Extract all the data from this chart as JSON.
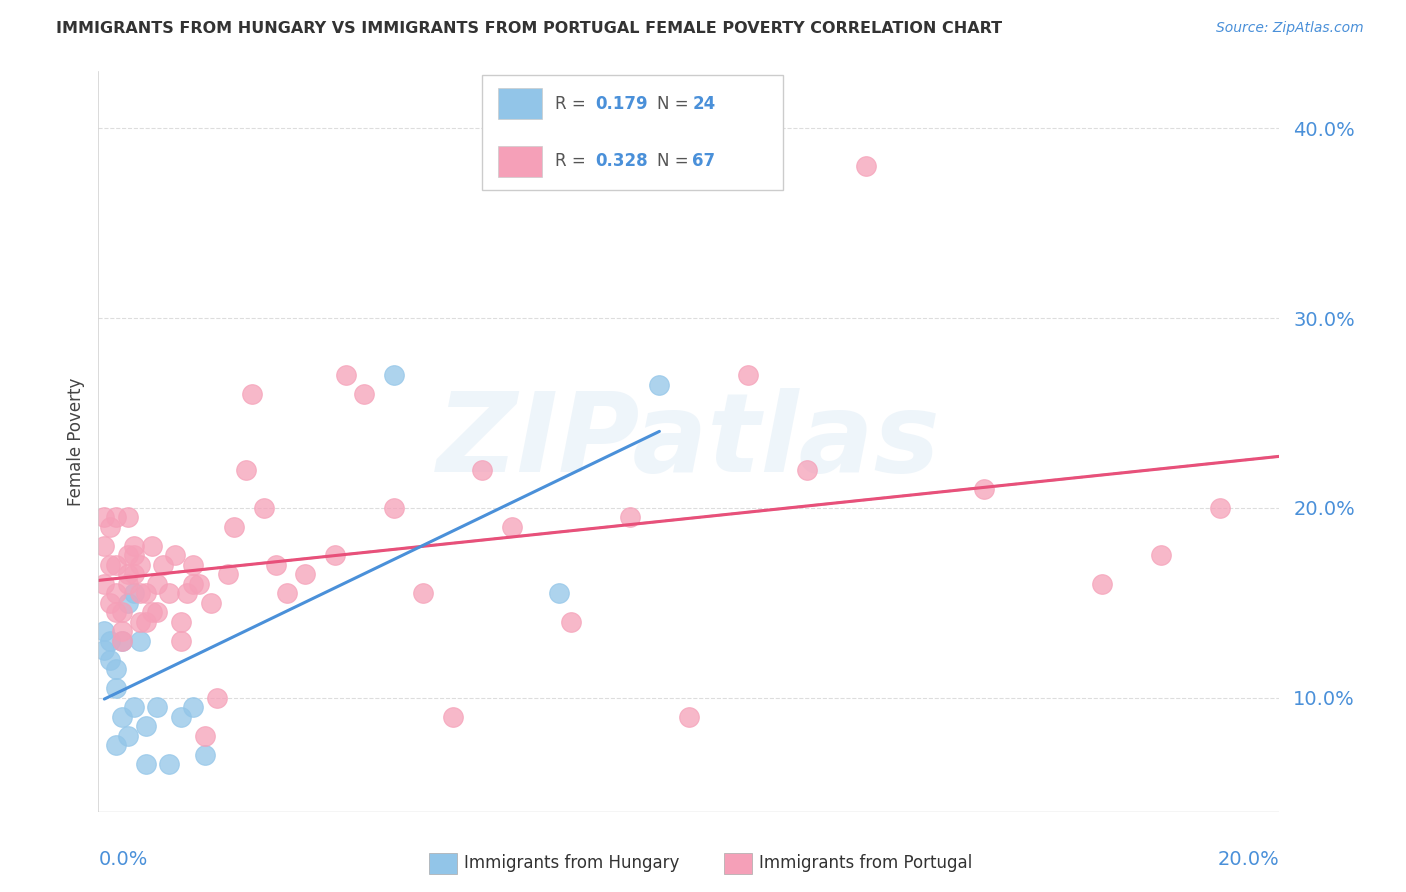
{
  "title": "IMMIGRANTS FROM HUNGARY VS IMMIGRANTS FROM PORTUGAL FEMALE POVERTY CORRELATION CHART",
  "source": "Source: ZipAtlas.com",
  "ylabel": "Female Poverty",
  "yticks": [
    0.1,
    0.2,
    0.3,
    0.4
  ],
  "ytick_labels": [
    "10.0%",
    "20.0%",
    "30.0%",
    "40.0%"
  ],
  "xlim": [
    0.0,
    0.2
  ],
  "ylim": [
    0.04,
    0.43
  ],
  "hungary_R": 0.179,
  "hungary_N": 24,
  "portugal_R": 0.328,
  "portugal_N": 67,
  "hungary_color": "#92C5E8",
  "portugal_color": "#F5A0B8",
  "hungary_line_color": "#4A90D9",
  "portugal_line_color": "#E8507A",
  "trend_dash_color": "#BBBBBB",
  "background_color": "#FFFFFF",
  "grid_color": "#DDDDDD",
  "label_color": "#4A90D9",
  "watermark": "ZIPatlas",
  "hungary_x": [
    0.001,
    0.001,
    0.002,
    0.002,
    0.003,
    0.003,
    0.003,
    0.004,
    0.004,
    0.005,
    0.005,
    0.006,
    0.006,
    0.007,
    0.008,
    0.008,
    0.01,
    0.012,
    0.014,
    0.016,
    0.018,
    0.05,
    0.078,
    0.095
  ],
  "hungary_y": [
    0.135,
    0.125,
    0.13,
    0.12,
    0.115,
    0.105,
    0.075,
    0.13,
    0.09,
    0.15,
    0.08,
    0.095,
    0.155,
    0.13,
    0.085,
    0.065,
    0.095,
    0.065,
    0.09,
    0.095,
    0.07,
    0.27,
    0.155,
    0.265
  ],
  "portugal_x": [
    0.001,
    0.001,
    0.001,
    0.002,
    0.002,
    0.002,
    0.003,
    0.003,
    0.003,
    0.003,
    0.004,
    0.004,
    0.004,
    0.005,
    0.005,
    0.005,
    0.005,
    0.006,
    0.006,
    0.006,
    0.007,
    0.007,
    0.007,
    0.008,
    0.008,
    0.009,
    0.009,
    0.01,
    0.01,
    0.011,
    0.012,
    0.013,
    0.014,
    0.014,
    0.015,
    0.016,
    0.016,
    0.017,
    0.018,
    0.019,
    0.02,
    0.022,
    0.023,
    0.025,
    0.026,
    0.028,
    0.03,
    0.032,
    0.035,
    0.04,
    0.042,
    0.045,
    0.05,
    0.055,
    0.06,
    0.065,
    0.07,
    0.08,
    0.09,
    0.1,
    0.11,
    0.12,
    0.13,
    0.15,
    0.17,
    0.18,
    0.19
  ],
  "portugal_y": [
    0.18,
    0.16,
    0.195,
    0.17,
    0.15,
    0.19,
    0.145,
    0.17,
    0.155,
    0.195,
    0.135,
    0.145,
    0.13,
    0.16,
    0.175,
    0.165,
    0.195,
    0.175,
    0.18,
    0.165,
    0.14,
    0.155,
    0.17,
    0.14,
    0.155,
    0.145,
    0.18,
    0.145,
    0.16,
    0.17,
    0.155,
    0.175,
    0.13,
    0.14,
    0.155,
    0.16,
    0.17,
    0.16,
    0.08,
    0.15,
    0.1,
    0.165,
    0.19,
    0.22,
    0.26,
    0.2,
    0.17,
    0.155,
    0.165,
    0.175,
    0.27,
    0.26,
    0.2,
    0.155,
    0.09,
    0.22,
    0.19,
    0.14,
    0.195,
    0.09,
    0.27,
    0.22,
    0.38,
    0.21,
    0.16,
    0.175,
    0.2
  ]
}
